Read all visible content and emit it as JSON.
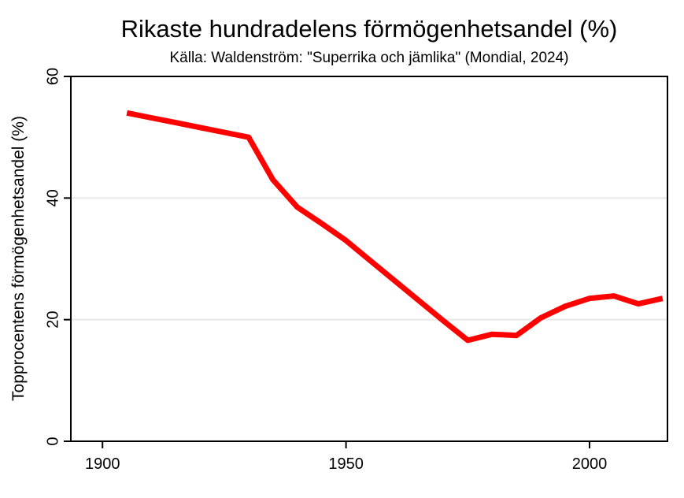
{
  "chart_data": {
    "type": "line",
    "title": "Rikaste hundradelens förmögenhetsandel (%)",
    "subtitle": "Källa: Waldenström: \"Superrika och jämlika\" (Mondial, 2024)",
    "xlabel": "",
    "ylabel": "Topprocentens förmögenhetsandel (%)",
    "xlim": [
      1893.5,
      2016
    ],
    "ylim": [
      0,
      60
    ],
    "xticks": [
      "1900",
      "1950",
      "2000"
    ],
    "yticks": [
      "0",
      "20",
      "40",
      "60"
    ],
    "ytick_rotation_deg": -90,
    "grid": {
      "horizontal_at": [
        20,
        40
      ],
      "color": "#e8e8e8"
    },
    "legend": "none",
    "series": [
      {
        "name": "Topprocentens förmögenhetsandel (%)",
        "color": "#ff0000",
        "line_width": 7,
        "x": [
          1905,
          1910,
          1915,
          1920,
          1925,
          1930,
          1935,
          1940,
          1945,
          1950,
          1955,
          1960,
          1965,
          1970,
          1975,
          1980,
          1985,
          1990,
          1995,
          2000,
          2005,
          2010,
          2015
        ],
        "y": [
          54,
          53.2,
          52.4,
          51.6,
          50.8,
          50,
          43,
          38.5,
          35.8,
          33,
          29.7,
          26.4,
          23.1,
          19.8,
          16.6,
          17.6,
          17.4,
          20.3,
          22.2,
          23.5,
          23.9,
          22.6,
          23.5
        ]
      }
    ]
  },
  "colors": {
    "line": "#ff0000",
    "axis": "#000000",
    "grid": "#e8e8e8",
    "text": "#000000",
    "background": "#ffffff"
  }
}
